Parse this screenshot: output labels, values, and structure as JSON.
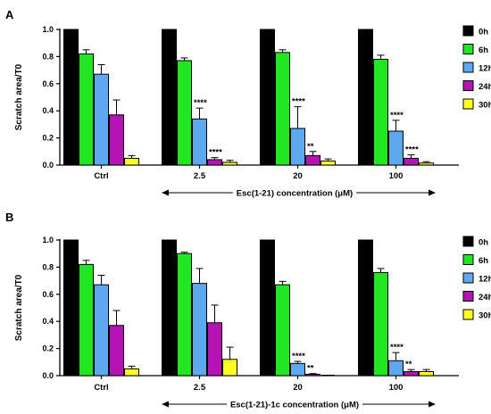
{
  "legend": [
    {
      "name": "0h",
      "color": "#000000"
    },
    {
      "name": "6h",
      "color": "#22e622"
    },
    {
      "name": "12h",
      "color": "#5ea8f0"
    },
    {
      "name": "24h",
      "color": "#b414b4"
    },
    {
      "name": "30h",
      "color": "#ffff22"
    }
  ],
  "chart_data": [
    {
      "panel": "A",
      "type": "bar",
      "categories": [
        "Ctrl",
        "2.5",
        "20",
        "100"
      ],
      "ylabel": "Scratch area/T0",
      "xlabel": "Esc(1-21) concentration (μM)",
      "ylim": [
        0,
        1.0
      ],
      "yticks": [
        "0.0",
        "0.2",
        "0.4",
        "0.6",
        "0.8",
        "1.0"
      ],
      "legend_position": "right",
      "series": [
        {
          "name": "0h",
          "values": [
            1.0,
            1.0,
            1.0,
            1.0
          ],
          "errors": [
            0,
            0,
            0,
            0
          ]
        },
        {
          "name": "6h",
          "values": [
            0.82,
            0.77,
            0.83,
            0.78
          ],
          "errors": [
            0.03,
            0.02,
            0.02,
            0.03
          ]
        },
        {
          "name": "12h",
          "values": [
            0.67,
            0.34,
            0.27,
            0.25
          ],
          "errors": [
            0.07,
            0.08,
            0.16,
            0.08
          ]
        },
        {
          "name": "24h",
          "values": [
            0.37,
            0.04,
            0.07,
            0.05
          ],
          "errors": [
            0.11,
            0.015,
            0.03,
            0.025
          ]
        },
        {
          "name": "30h",
          "values": [
            0.05,
            0.02,
            0.03,
            0.015
          ],
          "errors": [
            0.02,
            0.015,
            0.015,
            0.01
          ]
        }
      ],
      "annotations": [
        {
          "category": "2.5",
          "series": "12h",
          "text": "****"
        },
        {
          "category": "2.5",
          "series": "24h",
          "text": "****"
        },
        {
          "category": "20",
          "series": "12h",
          "text": "****"
        },
        {
          "category": "20",
          "series": "24h",
          "text": "**"
        },
        {
          "category": "100",
          "series": "12h",
          "text": "****"
        },
        {
          "category": "100",
          "series": "24h",
          "text": "****"
        }
      ]
    },
    {
      "panel": "B",
      "type": "bar",
      "categories": [
        "Ctrl",
        "2.5",
        "20",
        "100"
      ],
      "ylabel": "Scratch area/T0",
      "xlabel": "Esc(1-21)-1c concentration (μM)",
      "ylim": [
        0,
        1.0
      ],
      "yticks": [
        "0.0",
        "0.2",
        "0.4",
        "0.6",
        "0.8",
        "1.0"
      ],
      "legend_position": "right",
      "series": [
        {
          "name": "0h",
          "values": [
            1.0,
            1.0,
            1.0,
            1.0
          ],
          "errors": [
            0,
            0,
            0,
            0
          ]
        },
        {
          "name": "6h",
          "values": [
            0.82,
            0.9,
            0.67,
            0.76
          ],
          "errors": [
            0.03,
            0.01,
            0.025,
            0.03
          ]
        },
        {
          "name": "12h",
          "values": [
            0.67,
            0.68,
            0.09,
            0.11
          ],
          "errors": [
            0.07,
            0.11,
            0.015,
            0.06
          ]
        },
        {
          "name": "24h",
          "values": [
            0.37,
            0.39,
            0.01,
            0.03
          ],
          "errors": [
            0.11,
            0.13,
            0.005,
            0.015
          ]
        },
        {
          "name": "30h",
          "values": [
            0.05,
            0.12,
            0.0,
            0.03
          ],
          "errors": [
            0.02,
            0.09,
            0.0,
            0.015
          ]
        }
      ],
      "annotations": [
        {
          "category": "20",
          "series": "12h",
          "text": "****"
        },
        {
          "category": "20",
          "series": "24h",
          "text": "**"
        },
        {
          "category": "100",
          "series": "12h",
          "text": "****"
        },
        {
          "category": "100",
          "series": "24h",
          "text": "**"
        }
      ]
    }
  ]
}
